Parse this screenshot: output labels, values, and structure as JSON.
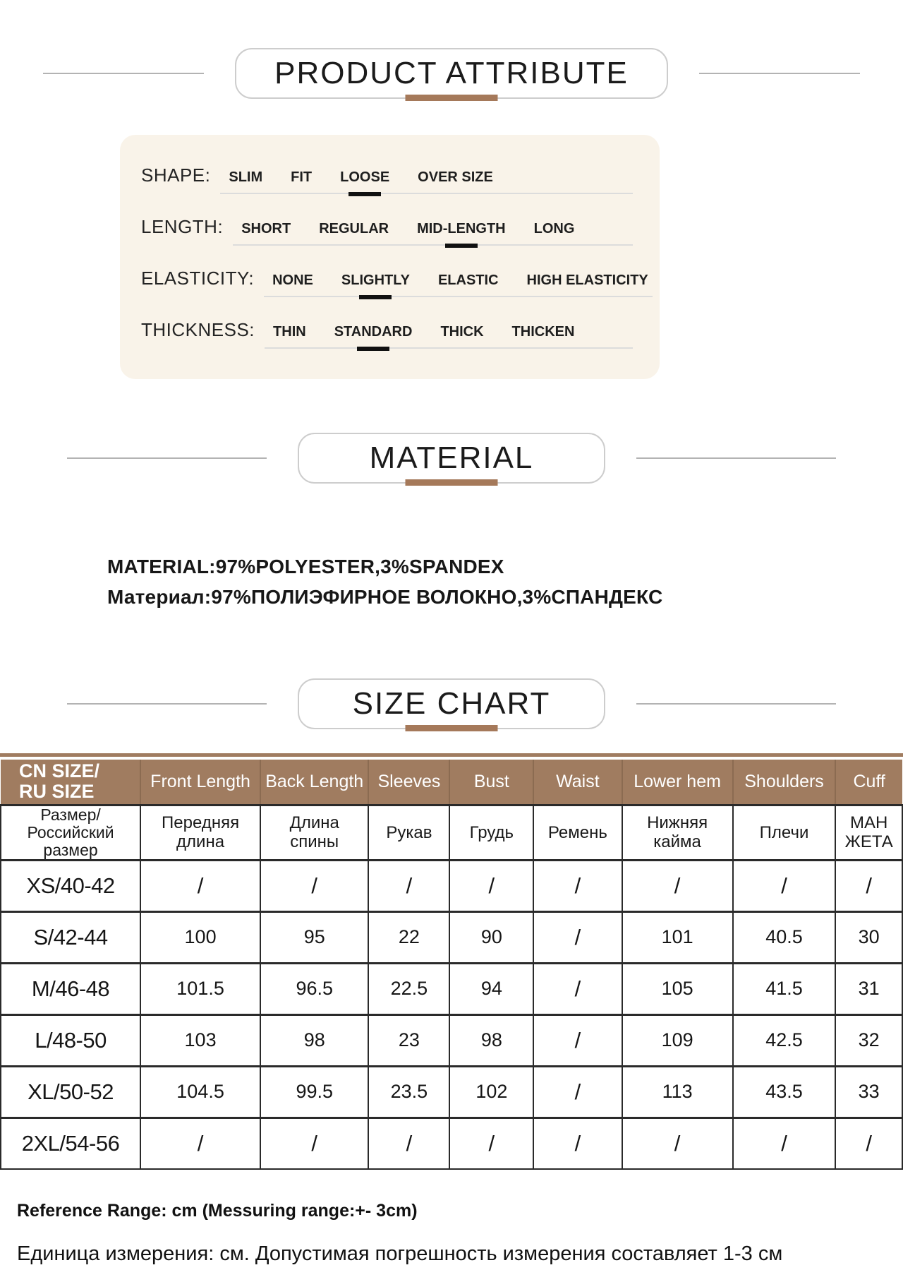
{
  "colors": {
    "accent_bar": "#a5795a",
    "table_header_bg": "#a07c60",
    "panel_bg": "#f9f3e9",
    "selection_mark": "#111111"
  },
  "attribute_section": {
    "title": "PRODUCT ATTRIBUTE",
    "rows": [
      {
        "key": "shape",
        "label": "SHAPE:",
        "options": [
          "SLIM",
          "FIT",
          "LOOSE",
          "OVER SIZE"
        ],
        "selected_index": 2,
        "selected": "LOOSE"
      },
      {
        "key": "length",
        "label": "LENGTH:",
        "options": [
          "SHORT",
          "REGULAR",
          "MID-LENGTH",
          "LONG"
        ],
        "selected_index": 2,
        "selected": "MID-LENGTH"
      },
      {
        "key": "elasticity",
        "label": "ELASTICITY:",
        "options": [
          "NONE",
          "SLIGHTLY",
          "ELASTIC",
          "HIGH ELASTICITY"
        ],
        "selected_index": 1,
        "selected": "SLIGHTLY"
      },
      {
        "key": "thickness",
        "label": "THICKNESS:",
        "options": [
          "THIN",
          "STANDARD",
          "THICK",
          "THICKEN"
        ],
        "selected_index": 1,
        "selected": "STANDARD"
      }
    ]
  },
  "material_section": {
    "title": "MATERIAL",
    "lines": [
      "MATERIAL:97%POLYESTER,3%SPANDEX",
      "Материал:97%ПОЛИЭФИРНОЕ ВОЛОКНО,3%СПАНДЕКС"
    ]
  },
  "size_chart_section": {
    "title": "SIZE CHART",
    "table": {
      "columns_en": [
        "CN SIZE/\nRU SIZE",
        "Front Length",
        "Back Length",
        "Sleeves",
        "Bust",
        "Waist",
        "Lower hem",
        "Shoulders",
        "Cuff"
      ],
      "columns_ru": [
        "Размер/\nРоссийский\nразмер",
        "Передняя\nдлина",
        "Длина\nспины",
        "Рукав",
        "Грудь",
        "Ремень",
        "Нижняя\nкайма",
        "Плечи",
        "МАН\nЖЕТА"
      ],
      "rows": [
        [
          "XS/40-42",
          "/",
          "/",
          "/",
          "/",
          "/",
          "/",
          "/",
          "/"
        ],
        [
          "S/42-44",
          "100",
          "95",
          "22",
          "90",
          "/",
          "101",
          "40.5",
          "30"
        ],
        [
          "M/46-48",
          "101.5",
          "96.5",
          "22.5",
          "94",
          "/",
          "105",
          "41.5",
          "31"
        ],
        [
          "L/48-50",
          "103",
          "98",
          "23",
          "98",
          "/",
          "109",
          "42.5",
          "32"
        ],
        [
          "XL/50-52",
          "104.5",
          "99.5",
          "23.5",
          "102",
          "/",
          "113",
          "43.5",
          "33"
        ],
        [
          "2XL/54-56",
          "/",
          "/",
          "/",
          "/",
          "/",
          "/",
          "/",
          "/"
        ]
      ]
    },
    "notes": [
      "Reference Range: cm (Messuring range:+- 3cm)",
      "Единица измерения: см. Допустимая погрешность измерения составляет 1-3 см"
    ]
  }
}
